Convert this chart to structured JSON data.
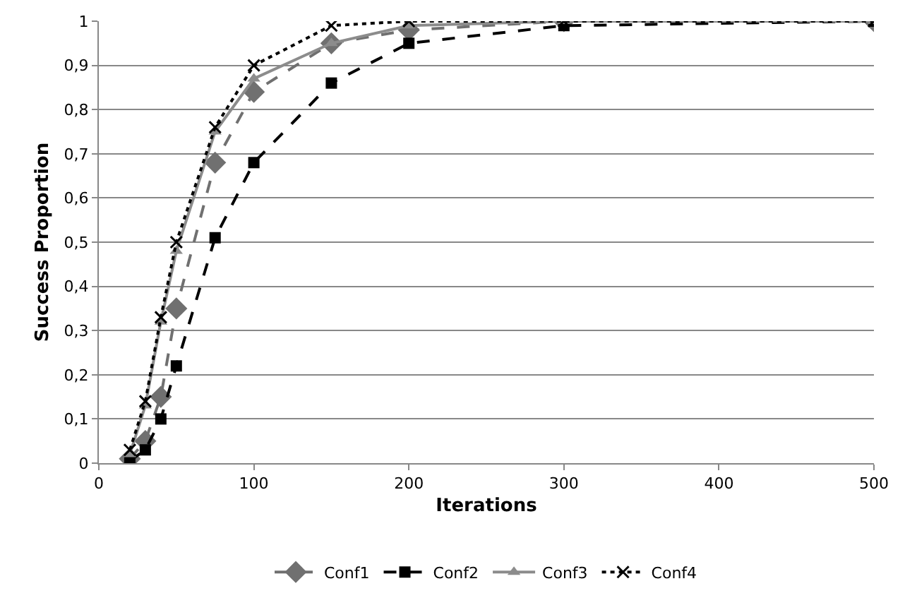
{
  "chart_data": {
    "type": "line",
    "xlabel": "Iterations",
    "ylabel": "Success Proportion",
    "x": [
      20,
      30,
      40,
      50,
      75,
      100,
      150,
      200,
      300,
      500
    ],
    "series": [
      {
        "name": "Conf1",
        "color": "#707070",
        "line_style": "dashed",
        "marker": "diamond",
        "values": [
          0.01,
          0.05,
          0.15,
          0.35,
          0.68,
          0.84,
          0.95,
          0.98,
          1.0,
          1.0
        ]
      },
      {
        "name": "Conf2",
        "color": "#000000",
        "line_style": "dashed",
        "marker": "square",
        "values": [
          0.005,
          0.03,
          0.1,
          0.22,
          0.51,
          0.68,
          0.86,
          0.95,
          0.99,
          1.0
        ]
      },
      {
        "name": "Conf3",
        "color": "#8c8c8c",
        "line_style": "solid",
        "marker": "triangle",
        "values": [
          0.02,
          0.13,
          0.32,
          0.48,
          0.75,
          0.87,
          0.95,
          0.99,
          1.0,
          1.0
        ]
      },
      {
        "name": "Conf4",
        "color": "#000000",
        "line_style": "dotted",
        "marker": "cross",
        "values": [
          0.03,
          0.14,
          0.33,
          0.5,
          0.76,
          0.9,
          0.99,
          1.0,
          1.0,
          1.0
        ]
      }
    ],
    "xlim": [
      0,
      500
    ],
    "xticks": [
      0,
      100,
      200,
      300,
      400,
      500
    ],
    "ylim": [
      0,
      1
    ],
    "yticks": [
      0,
      {
        "value": 0.1,
        "label": "0,1"
      },
      {
        "value": 0.2,
        "label": "0,2"
      },
      {
        "value": 0.3,
        "label": "0,3"
      },
      {
        "value": 0.4,
        "label": "0,4"
      },
      {
        "value": 0.5,
        "label": "0,5"
      },
      {
        "value": 0.6,
        "label": "0,6"
      },
      {
        "value": 0.7,
        "label": "0,7"
      },
      {
        "value": 0.8,
        "label": "0,8"
      },
      {
        "value": 0.9,
        "label": "0,9"
      },
      1
    ],
    "grid": "y",
    "legend": "bottom"
  }
}
